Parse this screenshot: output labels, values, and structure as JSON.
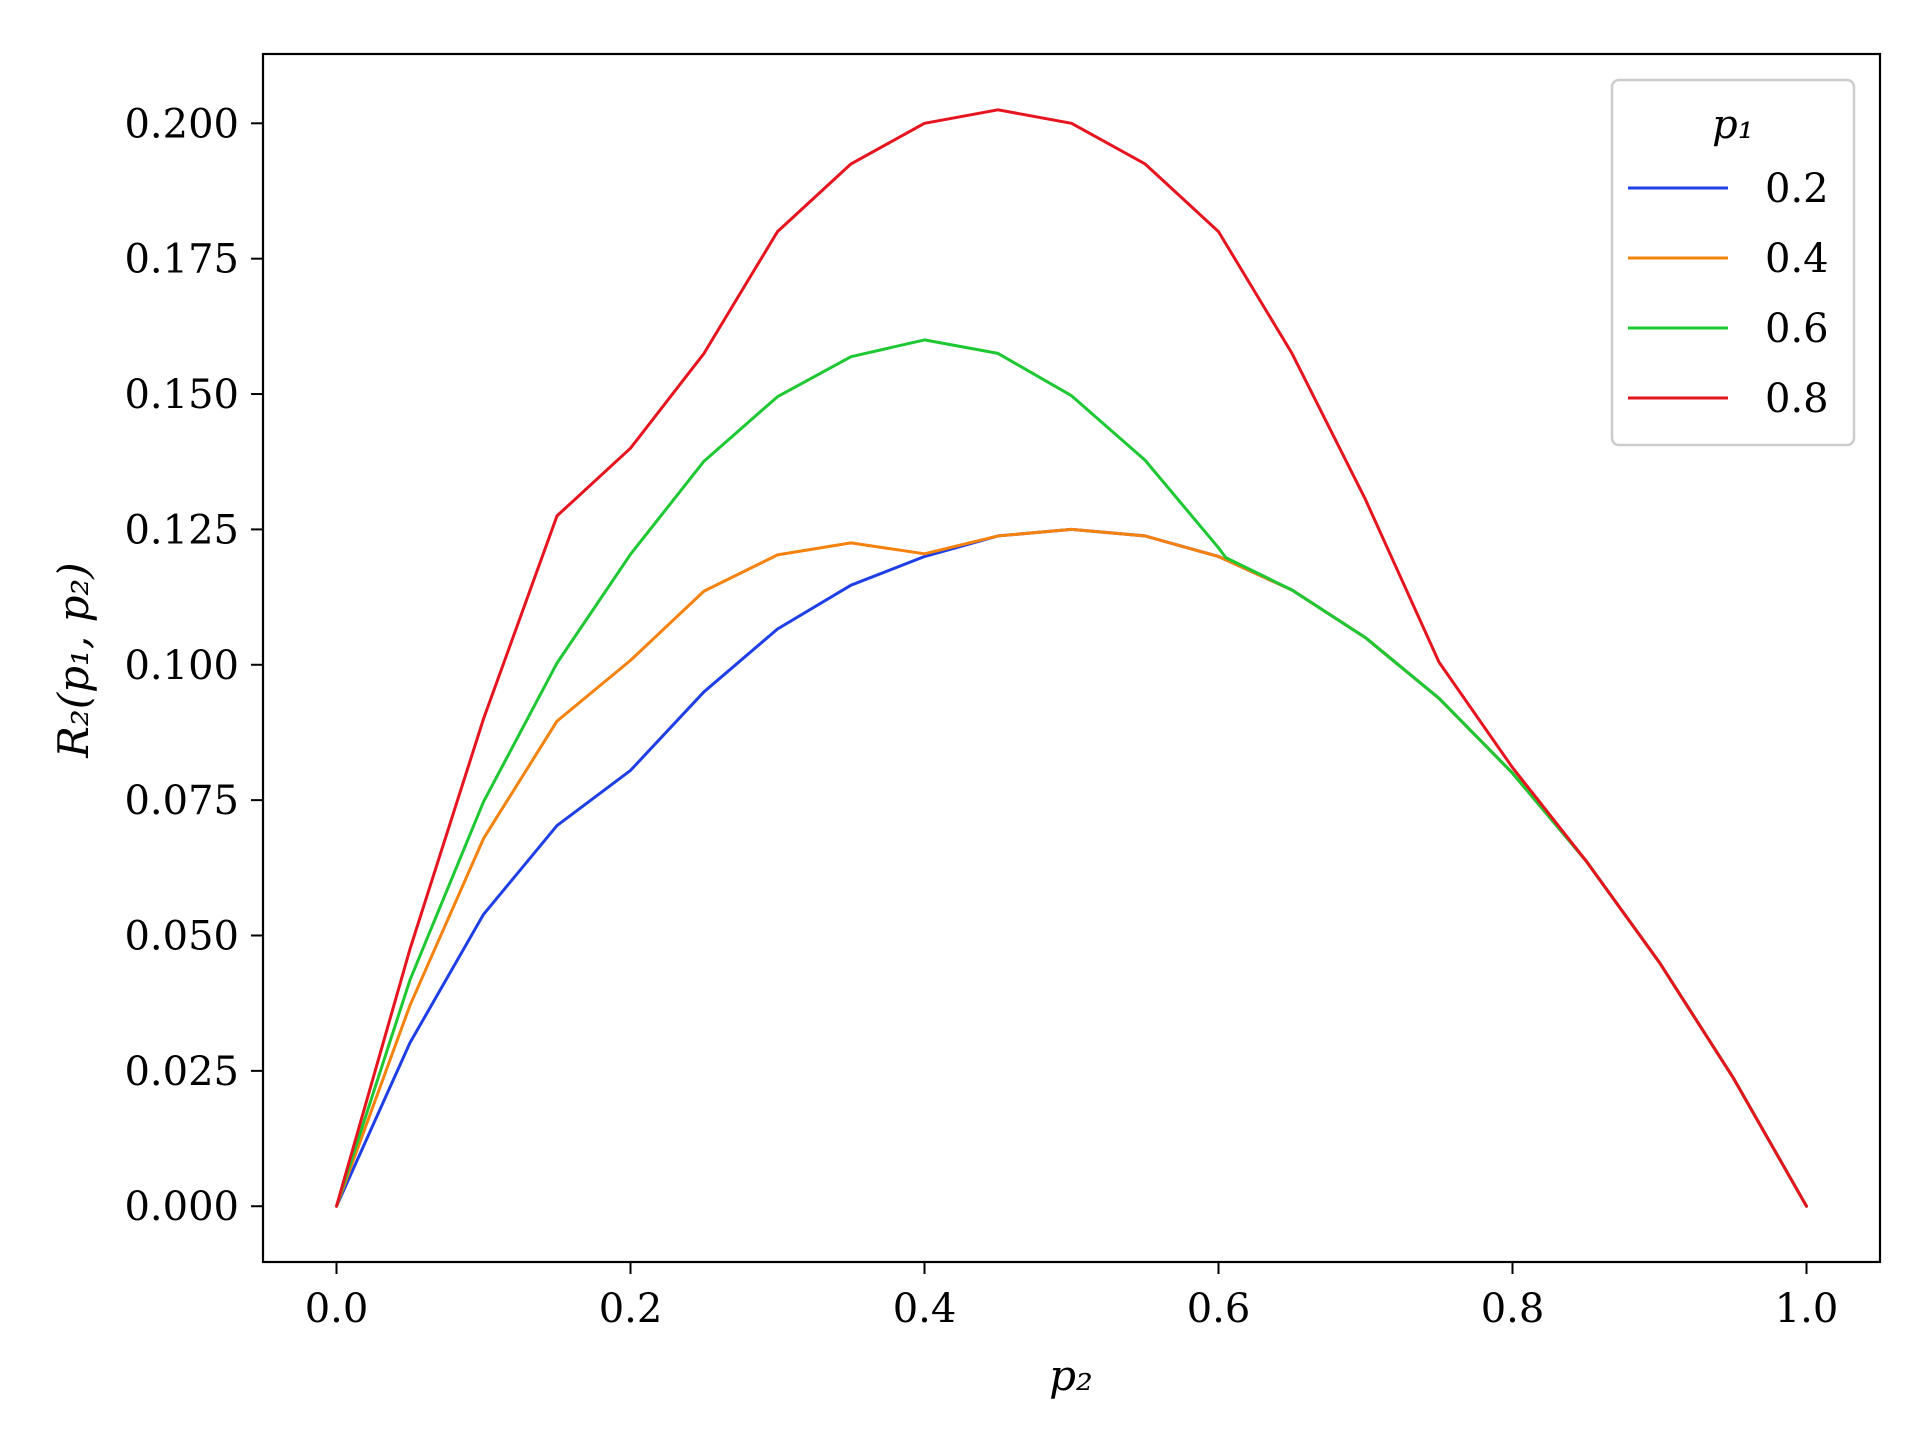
{
  "chart_data": {
    "type": "line",
    "xlabel": "p₂",
    "ylabel": "R₂(p₁, p₂)",
    "xlim": [
      -0.05,
      1.05
    ],
    "ylim": [
      -0.0103,
      0.2128
    ],
    "x_ticks": [
      0.0,
      0.2,
      0.4,
      0.6,
      0.8,
      1.0
    ],
    "x_tick_labels": [
      "0.0",
      "0.2",
      "0.4",
      "0.6",
      "0.8",
      "1.0"
    ],
    "y_ticks": [
      0.0,
      0.025,
      0.05,
      0.075,
      0.1,
      0.125,
      0.15,
      0.175,
      0.2
    ],
    "y_tick_labels": [
      "0.000",
      "0.025",
      "0.050",
      "0.075",
      "0.100",
      "0.125",
      "0.150",
      "0.175",
      "0.200"
    ],
    "grid": false,
    "legend": {
      "title": "p₁",
      "placement": "top-right"
    },
    "series": [
      {
        "name": "0.2",
        "color": "#1f3fe6",
        "x": [
          0.0,
          0.05,
          0.1,
          0.15,
          0.2,
          0.25,
          0.3,
          0.35,
          0.4,
          0.45,
          0.5,
          0.55,
          0.6,
          0.65,
          0.7,
          0.75,
          0.8,
          0.85,
          0.9,
          0.95,
          1.0
        ],
        "y": [
          0.0,
          0.0302,
          0.0539,
          0.0703,
          0.0805,
          0.095,
          0.1066,
          0.1147,
          0.12,
          0.1238,
          0.125,
          0.1238,
          0.12,
          0.1138,
          0.105,
          0.0938,
          0.08,
          0.0638,
          0.045,
          0.0238,
          0.0
        ]
      },
      {
        "name": "0.4",
        "color": "#f5820d",
        "x": [
          0.0,
          0.05,
          0.1,
          0.15,
          0.2,
          0.25,
          0.3,
          0.35,
          0.4,
          0.45,
          0.5,
          0.55,
          0.6,
          0.65,
          0.7,
          0.75,
          0.8,
          0.85,
          0.9,
          0.95,
          1.0
        ],
        "y": [
          0.0,
          0.0371,
          0.0679,
          0.0896,
          0.1008,
          0.1136,
          0.1203,
          0.1225,
          0.1205,
          0.1238,
          0.125,
          0.1238,
          0.12,
          0.1138,
          0.105,
          0.0938,
          0.08,
          0.0638,
          0.045,
          0.0238,
          0.0
        ]
      },
      {
        "name": "0.6",
        "color": "#1ec832",
        "x": [
          0.0,
          0.05,
          0.1,
          0.15,
          0.2,
          0.25,
          0.3,
          0.35,
          0.4,
          0.45,
          0.5,
          0.55,
          0.6,
          0.605,
          0.65,
          0.7,
          0.75,
          0.8,
          0.85,
          0.9,
          0.95,
          1.0
        ],
        "y": [
          0.0,
          0.0418,
          0.0747,
          0.1003,
          0.1204,
          0.1376,
          0.1495,
          0.1569,
          0.16,
          0.1575,
          0.1497,
          0.1378,
          0.1216,
          0.1198,
          0.1138,
          0.105,
          0.0938,
          0.08,
          0.0638,
          0.045,
          0.0238,
          0.0
        ]
      },
      {
        "name": "0.8",
        "color": "#e5141e",
        "x": [
          0.0,
          0.05,
          0.1,
          0.15,
          0.2,
          0.25,
          0.3,
          0.35,
          0.4,
          0.45,
          0.5,
          0.55,
          0.6,
          0.65,
          0.7,
          0.75,
          0.8,
          0.85,
          0.9,
          0.95,
          1.0
        ],
        "y": [
          0.0,
          0.0475,
          0.09,
          0.1275,
          0.14,
          0.1575,
          0.18,
          0.1925,
          0.2,
          0.2025,
          0.2,
          0.1925,
          0.18,
          0.1575,
          0.1305,
          0.1005,
          0.081,
          0.0638,
          0.045,
          0.0238,
          0.0
        ]
      }
    ]
  }
}
